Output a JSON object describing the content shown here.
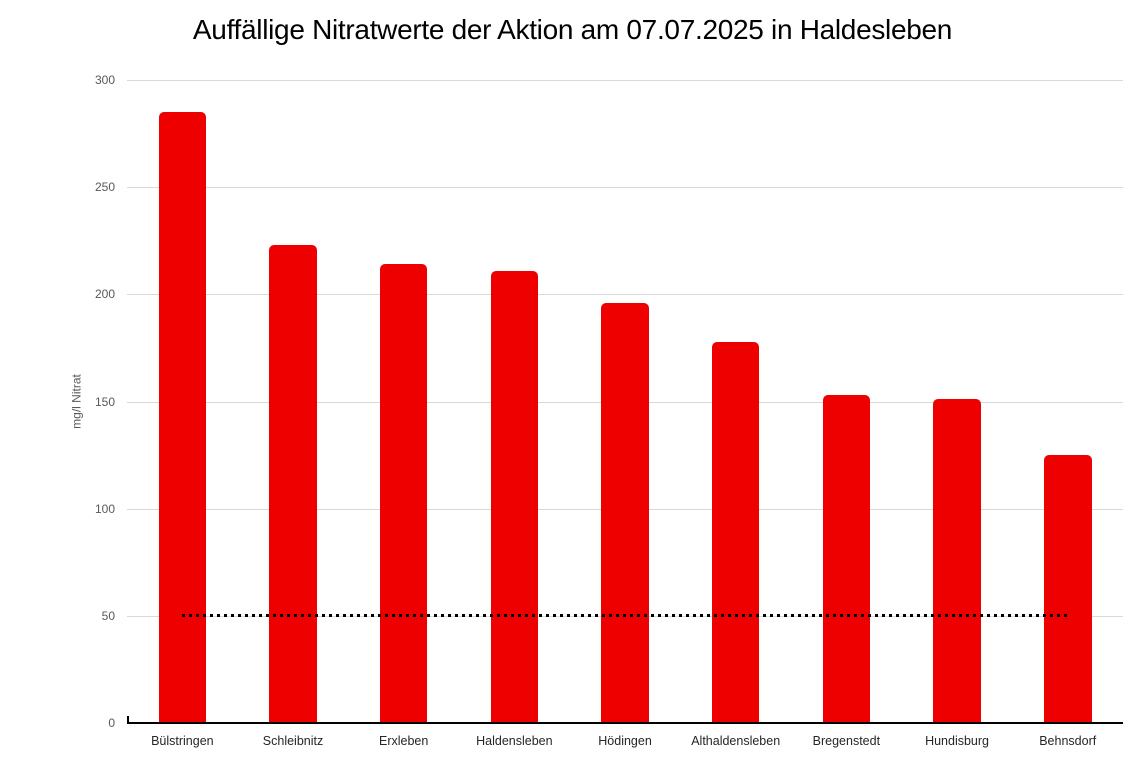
{
  "title": "Auffällige Nitratwerte der Aktion am 07.07.2025 in Haldesleben",
  "colors": {
    "bar": "#ee0000",
    "gridline": "#d9d9d9",
    "axis": "#000000",
    "limit_line": "#000000",
    "tick_text": "#595959",
    "category_text": "#262626",
    "title_text": "#000000",
    "background": "#ffffff"
  },
  "chart_data": {
    "type": "bar",
    "title": "Auffällige Nitratwerte der Aktion am 07.07.2025 in Haldesleben",
    "categories": [
      "Bülstringen",
      "Schleibnitz",
      "Erxleben",
      "Haldensleben",
      "Hödingen",
      "Althaldensleben",
      "Bregenstedt",
      "Hundisburg",
      "Behnsdorf"
    ],
    "values": [
      285,
      223,
      214,
      211,
      196,
      178,
      153,
      151,
      125
    ],
    "xlabel": "",
    "ylabel": "mg/l Nitrat",
    "ylim": [
      0,
      300
    ],
    "yticks": [
      0,
      50,
      100,
      150,
      200,
      250,
      300
    ],
    "grid": true,
    "legend": false,
    "limit_line": {
      "value": 50,
      "style": "dotted"
    }
  }
}
